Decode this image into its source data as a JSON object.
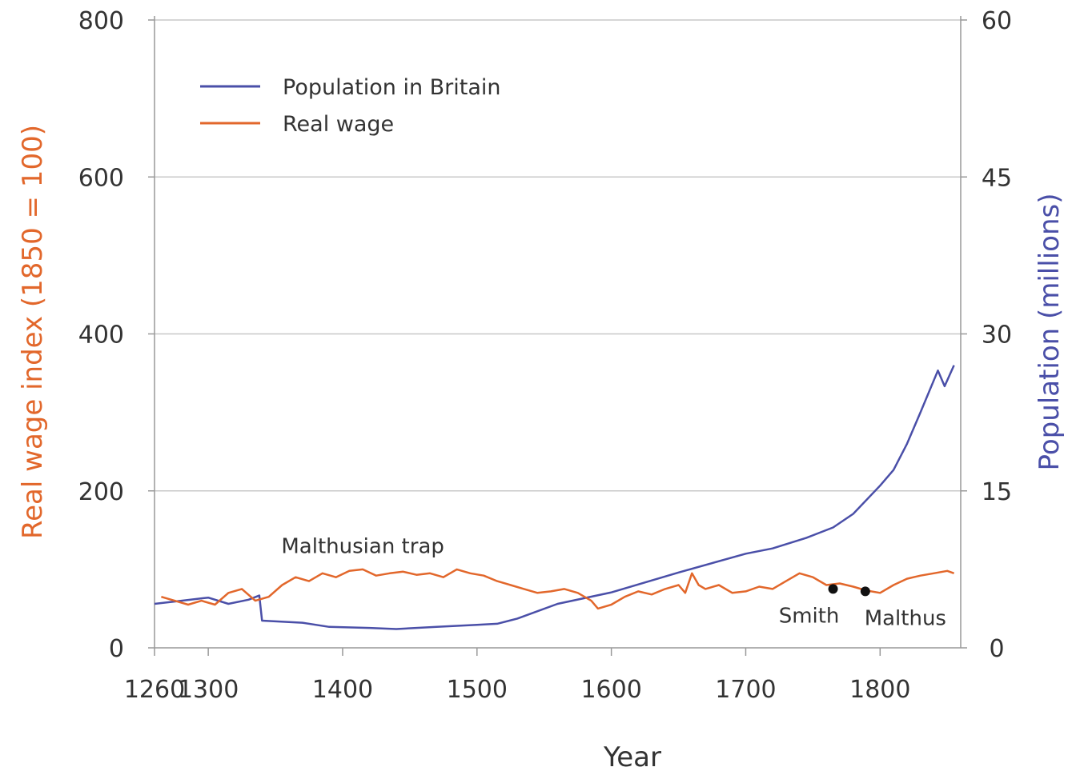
{
  "chart_data": {
    "type": "line",
    "xlabel": "Year",
    "ylabel_left": "Real wage index (1850 = 100)",
    "ylabel_right": "Population (millions)",
    "xlim": [
      1260,
      1860
    ],
    "ylim_left": [
      0,
      800
    ],
    "ylim_right": [
      0,
      60
    ],
    "x_ticks": [
      1260,
      1300,
      1400,
      1500,
      1600,
      1700,
      1800
    ],
    "y_ticks_left": [
      0,
      200,
      400,
      600,
      800
    ],
    "y_ticks_right": [
      0,
      15,
      30,
      45,
      60
    ],
    "grid": "horizontal",
    "legend_position": "top-left",
    "series": [
      {
        "name": "Population in Britain",
        "axis": "right",
        "color": "#4a4fa8",
        "x": [
          1260,
          1280,
          1300,
          1315,
          1330,
          1338,
          1340,
          1370,
          1390,
          1420,
          1440,
          1470,
          1500,
          1515,
          1530,
          1560,
          1600,
          1650,
          1700,
          1720,
          1745,
          1765,
          1780,
          1800,
          1810,
          1820,
          1830,
          1843,
          1848,
          1855
        ],
        "values": [
          4.2,
          4.5,
          4.8,
          4.2,
          4.6,
          5.0,
          2.6,
          2.4,
          2.0,
          1.9,
          1.8,
          2.0,
          2.2,
          2.3,
          2.8,
          4.2,
          5.3,
          7.2,
          9.0,
          9.5,
          10.5,
          11.5,
          12.8,
          15.5,
          17.0,
          19.5,
          22.5,
          26.5,
          25.0,
          27.0
        ]
      },
      {
        "name": "Real wage",
        "axis": "left",
        "color": "#e2672b",
        "x": [
          1265,
          1275,
          1285,
          1295,
          1305,
          1315,
          1325,
          1335,
          1345,
          1355,
          1365,
          1375,
          1385,
          1395,
          1405,
          1415,
          1425,
          1435,
          1445,
          1455,
          1465,
          1475,
          1485,
          1495,
          1505,
          1515,
          1525,
          1535,
          1545,
          1555,
          1565,
          1575,
          1585,
          1590,
          1600,
          1610,
          1620,
          1630,
          1640,
          1650,
          1655,
          1660,
          1665,
          1670,
          1680,
          1690,
          1700,
          1710,
          1720,
          1730,
          1740,
          1750,
          1760,
          1770,
          1780,
          1790,
          1800,
          1810,
          1820,
          1830,
          1840,
          1850,
          1855
        ],
        "values": [
          65,
          60,
          55,
          60,
          55,
          70,
          75,
          60,
          65,
          80,
          90,
          85,
          95,
          90,
          98,
          100,
          92,
          95,
          97,
          93,
          95,
          90,
          100,
          95,
          92,
          85,
          80,
          75,
          70,
          72,
          75,
          70,
          60,
          50,
          55,
          65,
          72,
          68,
          75,
          80,
          70,
          95,
          80,
          75,
          80,
          70,
          72,
          78,
          75,
          85,
          95,
          90,
          80,
          82,
          78,
          73,
          70,
          80,
          88,
          92,
          95,
          98,
          95
        ]
      }
    ],
    "annotations": [
      {
        "text": "Malthusian trap",
        "x": 1415,
        "y": 130
      },
      {
        "text": "Smith",
        "x": 1765,
        "y": 75,
        "marker": true
      },
      {
        "text": "Malthus",
        "x": 1789,
        "y": 72,
        "marker": true
      }
    ]
  },
  "colors": {
    "left_axis": "#e2672b",
    "right_axis": "#4a4fa8",
    "grid": "#c8c8c8",
    "axis_line": "#999999"
  }
}
